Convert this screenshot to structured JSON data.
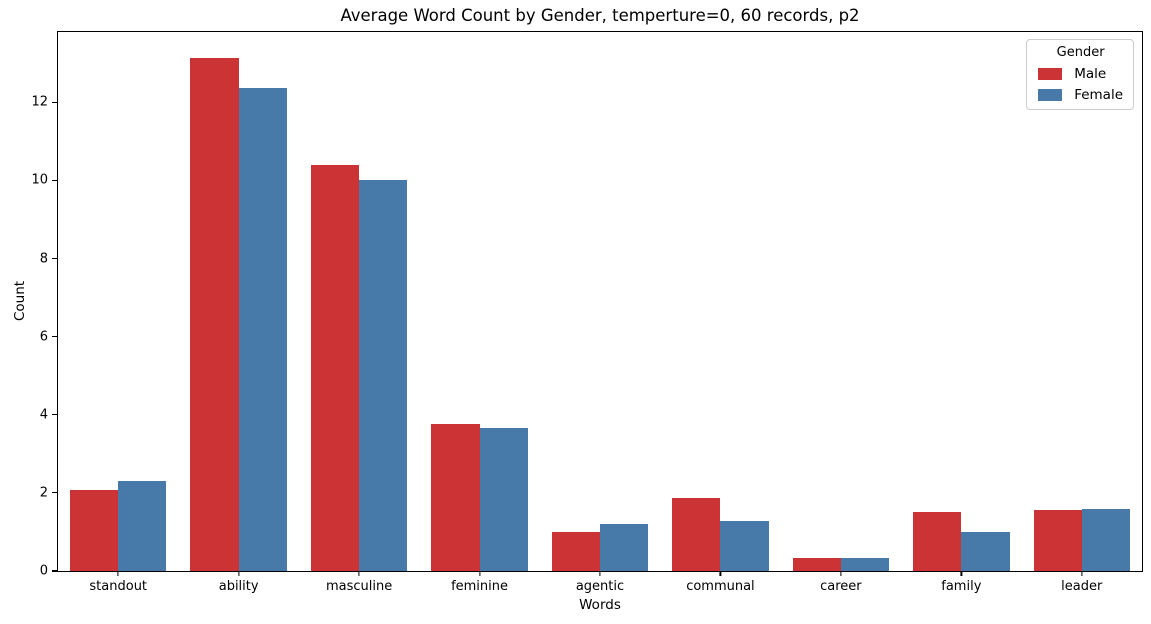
{
  "chart_data": {
    "type": "bar",
    "title": "Average Word Count by Gender, temperture=0, 60 records, p2",
    "xlabel": "Words",
    "ylabel": "Count",
    "categories": [
      "standout",
      "ability",
      "masculine",
      "feminine",
      "agentic",
      "communal",
      "career",
      "family",
      "leader"
    ],
    "series": [
      {
        "name": "Male",
        "color": "#cb3334",
        "values": [
          2.07,
          13.13,
          10.4,
          3.77,
          1.0,
          1.87,
          0.33,
          1.5,
          1.57
        ]
      },
      {
        "name": "Female",
        "color": "#477aa8",
        "values": [
          2.3,
          12.37,
          10.0,
          3.67,
          1.2,
          1.27,
          0.33,
          1.0,
          1.6
        ]
      }
    ],
    "yticks": [
      0,
      2,
      4,
      6,
      8,
      10,
      12
    ],
    "ylim": [
      0,
      13.8
    ],
    "grid": false,
    "bar_group_width_fraction": 0.8,
    "legend": {
      "title": "Gender",
      "position": "upper-right",
      "entries": [
        {
          "label": "Male",
          "color": "#cb3334"
        },
        {
          "label": "Female",
          "color": "#477aa8"
        }
      ]
    }
  }
}
